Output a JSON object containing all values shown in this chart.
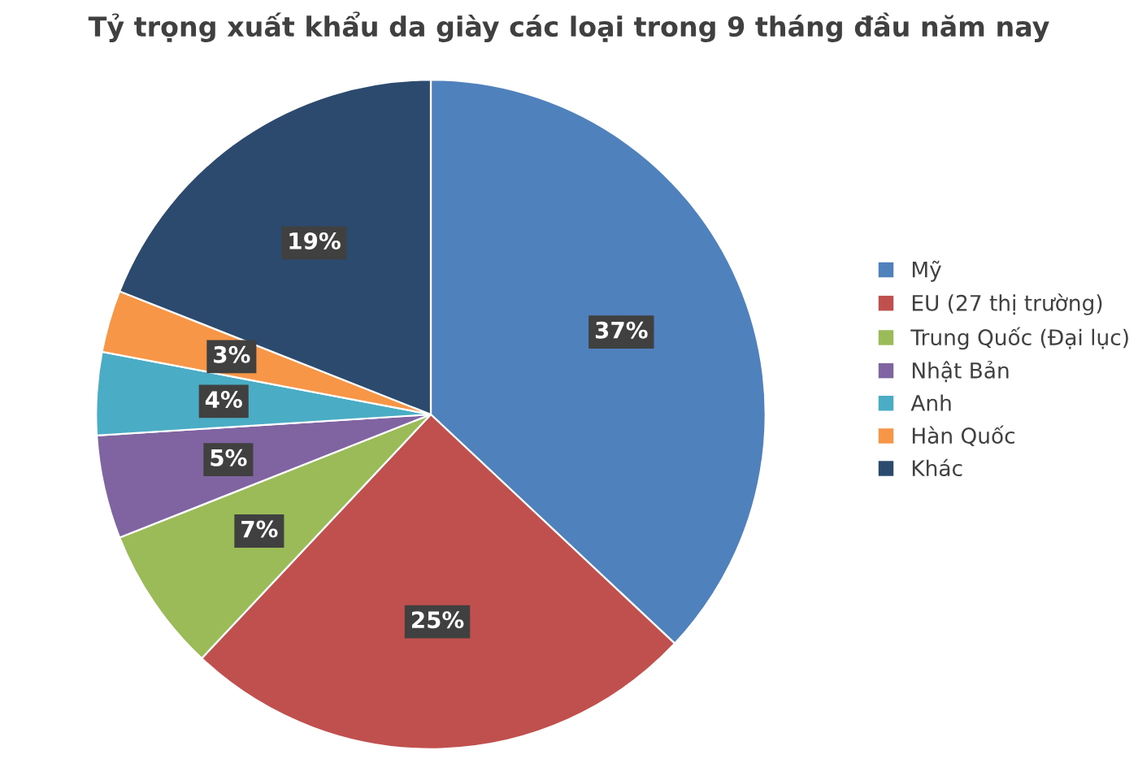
{
  "chart_data": {
    "type": "pie",
    "title": "Tỷ trọng xuất khẩu da giày các loại trong 9 tháng đầu năm nay",
    "categories": [
      "Mỹ",
      "EU (27 thị trường)",
      "Trung Quốc (Đại lục)",
      "Nhật Bản",
      "Anh",
      "Hàn Quốc",
      "Khác"
    ],
    "values": [
      37,
      25,
      7,
      5,
      4,
      3,
      19
    ],
    "colors": [
      "#4f81bd",
      "#c0504d",
      "#9bbb59",
      "#8064a2",
      "#4bacc6",
      "#f79646",
      "#2c4a6e"
    ],
    "value_labels": [
      "37%",
      "25%",
      "7%",
      "5%",
      "4%",
      "3%",
      "19%"
    ],
    "legend": "right"
  }
}
